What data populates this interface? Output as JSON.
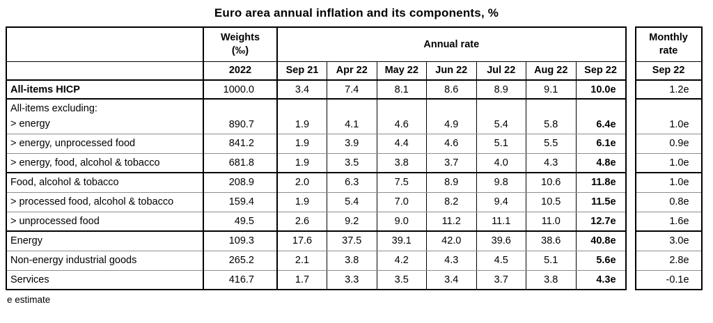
{
  "title": "Euro area annual inflation and its components, %",
  "footnote": "e estimate",
  "table": {
    "weights_header": "Weights",
    "weights_unit": "(‰)",
    "weights_year": "2022",
    "annual_header": "Annual rate",
    "monthly_header_line1": "Monthly",
    "monthly_header_line2": "rate",
    "monthly_month": "Sep 22",
    "months": [
      "Sep 21",
      "Apr 22",
      "May 22",
      "Jun 22",
      "Jul 22",
      "Aug 22",
      "Sep 22"
    ],
    "rows": [
      {
        "label": "All-items HICP",
        "label2": "",
        "bold": true,
        "tall": false,
        "sep": "thick",
        "weight": "1000.0",
        "annual": [
          "3.4",
          "7.4",
          "8.1",
          "8.6",
          "8.9",
          "9.1",
          "10.0e"
        ],
        "monthly": "1.2e"
      },
      {
        "label": "All-items excluding:",
        "label2": "> energy",
        "bold": false,
        "tall": true,
        "sep": "thick",
        "weight": "890.7",
        "annual": [
          "1.9",
          "4.1",
          "4.6",
          "4.9",
          "5.4",
          "5.8",
          "6.4e"
        ],
        "monthly": "1.0e"
      },
      {
        "label": "> energy, unprocessed food",
        "label2": "",
        "bold": false,
        "tall": false,
        "sep": "thin",
        "weight": "841.2",
        "annual": [
          "1.9",
          "3.9",
          "4.4",
          "4.6",
          "5.1",
          "5.5",
          "6.1e"
        ],
        "monthly": "0.9e"
      },
      {
        "label": "> energy, food, alcohol & tobacco",
        "label2": "",
        "bold": false,
        "tall": false,
        "sep": "thin",
        "weight": "681.8",
        "annual": [
          "1.9",
          "3.5",
          "3.8",
          "3.7",
          "4.0",
          "4.3",
          "4.8e"
        ],
        "monthly": "1.0e"
      },
      {
        "label": "Food, alcohol & tobacco",
        "label2": "",
        "bold": false,
        "tall": false,
        "sep": "thick",
        "weight": "208.9",
        "annual": [
          "2.0",
          "6.3",
          "7.5",
          "8.9",
          "9.8",
          "10.6",
          "11.8e"
        ],
        "monthly": "1.0e"
      },
      {
        "label": "> processed food, alcohol & tobacco",
        "label2": "",
        "bold": false,
        "tall": false,
        "sep": "thin",
        "weight": "159.4",
        "annual": [
          "1.9",
          "5.4",
          "7.0",
          "8.2",
          "9.4",
          "10.5",
          "11.5e"
        ],
        "monthly": "0.8e"
      },
      {
        "label": "> unprocessed food",
        "label2": "",
        "bold": false,
        "tall": false,
        "sep": "thin",
        "weight": "49.5",
        "annual": [
          "2.6",
          "9.2",
          "9.0",
          "11.2",
          "11.1",
          "11.0",
          "12.7e"
        ],
        "monthly": "1.6e"
      },
      {
        "label": "Energy",
        "label2": "",
        "bold": false,
        "tall": false,
        "sep": "thick",
        "weight": "109.3",
        "annual": [
          "17.6",
          "37.5",
          "39.1",
          "42.0",
          "39.6",
          "38.6",
          "40.8e"
        ],
        "monthly": "3.0e"
      },
      {
        "label": "Non-energy industrial goods",
        "label2": "",
        "bold": false,
        "tall": false,
        "sep": "thin",
        "weight": "265.2",
        "annual": [
          "2.1",
          "3.8",
          "4.2",
          "4.3",
          "4.5",
          "5.1",
          "5.6e"
        ],
        "monthly": "2.8e"
      },
      {
        "label": "Services",
        "label2": "",
        "bold": false,
        "tall": false,
        "sep": "thin",
        "weight": "416.7",
        "annual": [
          "1.7",
          "3.3",
          "3.5",
          "3.4",
          "3.7",
          "3.8",
          "4.3e"
        ],
        "monthly": "-0.1e"
      }
    ]
  }
}
